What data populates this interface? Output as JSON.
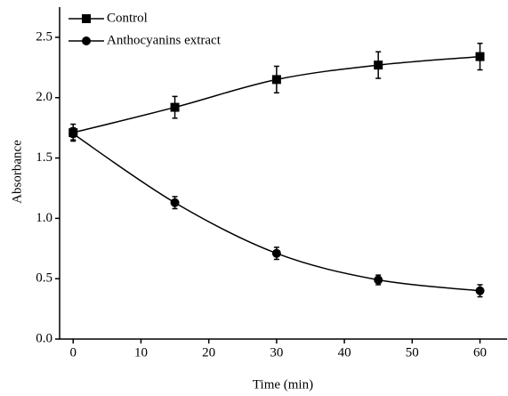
{
  "chart_data": {
    "type": "line",
    "x_label": "Time (min)",
    "y_label": "Absorbance",
    "x": [
      0,
      15,
      30,
      45,
      60
    ],
    "series": [
      {
        "name": "Control",
        "color": "#000000",
        "marker": "square",
        "values": [
          1.71,
          1.92,
          2.15,
          2.27,
          2.34
        ],
        "errors": [
          0.07,
          0.09,
          0.11,
          0.11,
          0.11
        ]
      },
      {
        "name": "Anthocyanins extract",
        "color": "#000000",
        "marker": "circle",
        "values": [
          1.7,
          1.13,
          0.71,
          0.49,
          0.4
        ],
        "errors": [
          0.05,
          0.05,
          0.05,
          0.04,
          0.05
        ]
      }
    ],
    "xlim": [
      -2,
      64
    ],
    "xticks": [
      0,
      10,
      20,
      30,
      40,
      50,
      60
    ],
    "ylim": [
      0,
      2.75
    ],
    "yticks": [
      {
        "value": 0,
        "label": "0.0"
      },
      0.5,
      {
        "value": 1,
        "label": "1.0"
      },
      1.5,
      {
        "value": 2,
        "label": "2.0"
      },
      2.5
    ],
    "legend": "top-left",
    "smooth": true
  }
}
